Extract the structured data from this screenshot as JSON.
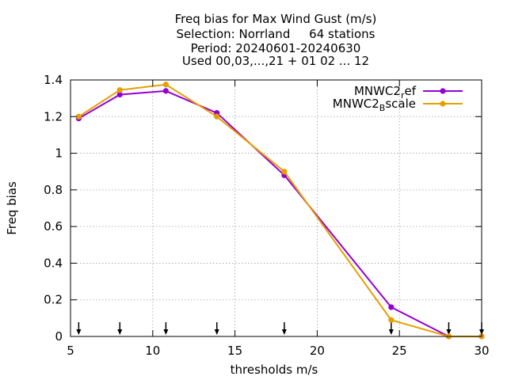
{
  "chart_data": {
    "type": "line",
    "title_lines": [
      "Freq bias  for Max Wind Gust (m/s)",
      "Selection: Norrland     64 stations",
      "Period: 20240601-20240630",
      "Used 00,03,...,21 + 01 02 ... 12"
    ],
    "xlabel": "thresholds m/s",
    "ylabel": "Freq bias",
    "xlim": [
      5,
      30
    ],
    "ylim": [
      0,
      1.4
    ],
    "xticks": [
      {
        "v": 5,
        "label": "5"
      },
      {
        "v": 10,
        "label": "10"
      },
      {
        "v": 15,
        "label": "15"
      },
      {
        "v": 20,
        "label": "20"
      },
      {
        "v": 25,
        "label": "25"
      },
      {
        "v": 30,
        "label": "30"
      }
    ],
    "yticks": [
      {
        "v": 0,
        "label": "0"
      },
      {
        "v": 0.2,
        "label": "0.2"
      },
      {
        "v": 0.4,
        "label": "0.4"
      },
      {
        "v": 0.6,
        "label": "0.6"
      },
      {
        "v": 0.8,
        "label": "0.8"
      },
      {
        "v": 1,
        "label": "1"
      },
      {
        "v": 1.2,
        "label": "1.2"
      },
      {
        "v": 1.4,
        "label": "1.4"
      }
    ],
    "grid": true,
    "legend_position": "top-right",
    "threshold_markers": [
      5.5,
      8,
      10.8,
      13.9,
      18,
      24.5,
      28,
      30
    ],
    "series": [
      {
        "name_base": "MNWC2",
        "name_sub": "r",
        "name_rest": "ef",
        "color": "#9400d3",
        "x": [
          5.5,
          8,
          10.8,
          13.9,
          18,
          24.5,
          28,
          30
        ],
        "values": [
          1.19,
          1.32,
          1.34,
          1.22,
          0.88,
          0.16,
          0.0,
          0.0
        ]
      },
      {
        "name_base": "MNWC2",
        "name_sub": "B",
        "name_rest": "scale",
        "color": "#e69f00",
        "x": [
          5.5,
          8,
          10.8,
          13.9,
          18,
          24.5,
          28,
          30
        ],
        "values": [
          1.2,
          1.345,
          1.375,
          1.2,
          0.9,
          0.09,
          0.0,
          0.0
        ]
      }
    ]
  }
}
